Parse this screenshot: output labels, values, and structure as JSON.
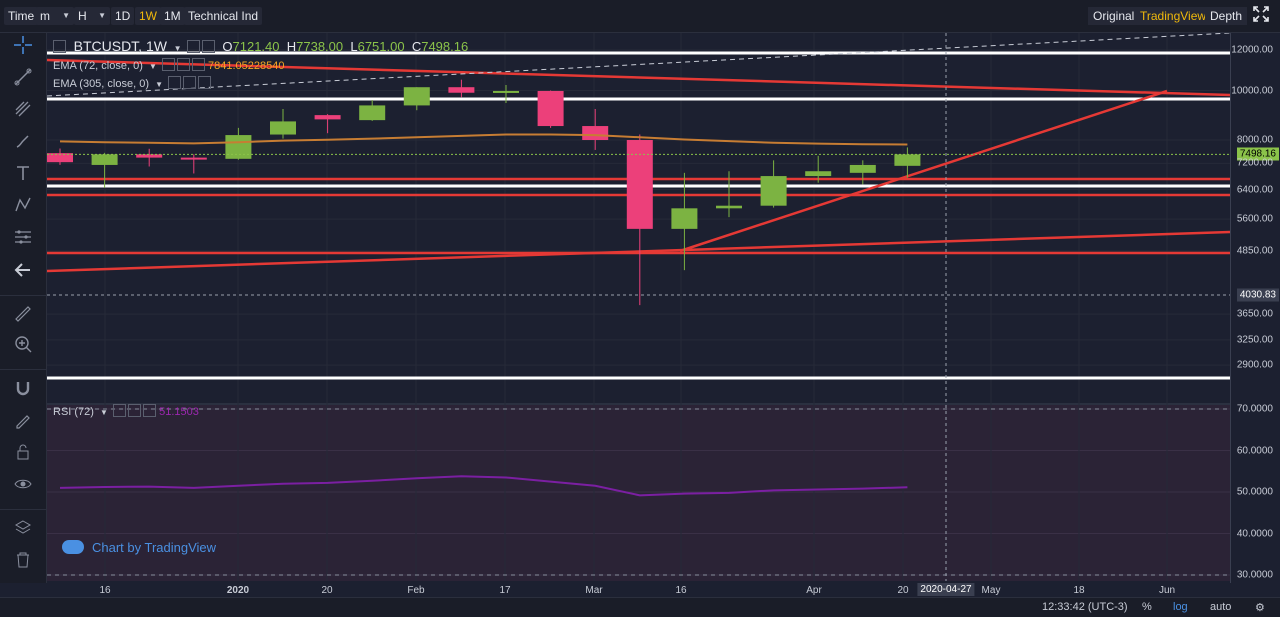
{
  "toolbar": {
    "time": "Time",
    "minute_menu": "m",
    "hour_menu": "H",
    "interval_1d": "1D",
    "interval_1w": "1W",
    "interval_1m": "1M",
    "indicators": "Technical Ind",
    "view_original": "Original",
    "view_tradingview": "TradingView",
    "view_depth": "Depth"
  },
  "legend": {
    "symbol": "BTCUSDT, 1W",
    "o_label": "O",
    "o": "7121.40",
    "h_label": "H",
    "h": "7738.00",
    "l_label": "L",
    "l": "6751.00",
    "c_label": "C",
    "c": "7498.16",
    "ema1": "EMA (72, close, 0)",
    "ema1_value": "7841.05228540",
    "ema2": "EMA (305, close, 0)",
    "rsi": "RSI (72)",
    "rsi_value": "51.1503"
  },
  "price_axis": {
    "labels": [
      "12000.00",
      "10000.00",
      "8000.00",
      "7200.00",
      "6400.00",
      "5600.00",
      "4850.00",
      "3650.00",
      "3250.00",
      "2900.00"
    ],
    "current_price_tag": "7498.16",
    "crosshair_price_tag": "4030.83",
    "rsi_labels": [
      "70.0000",
      "60.0000",
      "50.0000",
      "40.0000",
      "30.0000"
    ]
  },
  "time_axis": {
    "labels": [
      "16",
      "2020",
      "20",
      "Feb",
      "17",
      "Mar",
      "16",
      "Apr",
      "20",
      "May",
      "18",
      "Jun"
    ],
    "crosshair_date": "2020-04-27"
  },
  "status": {
    "clock": "12:33:42 (UTC-3)",
    "percent": "%",
    "log": "log",
    "auto": "auto"
  },
  "watermark": "Chart by TradingView",
  "colors": {
    "up": "#7cb342",
    "down": "#ec407a",
    "ema72": "#c77d33",
    "rsi": "#7b1fa2",
    "lines_red": "#e53935",
    "lines_white": "#ffffff",
    "accent": "#f0b90b"
  },
  "chart_data": {
    "type": "candlestick",
    "interval": "1W",
    "scale": "log",
    "ylim": [
      2700,
      12500
    ],
    "rsi_ylim": [
      30,
      70
    ],
    "candles": [
      {
        "x": "2019-12-09",
        "o": 7540,
        "h": 7700,
        "l": 7150,
        "c": 7240
      },
      {
        "x": "2019-12-16",
        "o": 7150,
        "h": 7550,
        "l": 6450,
        "c": 7500
      },
      {
        "x": "2019-12-23",
        "o": 7500,
        "h": 7690,
        "l": 7100,
        "c": 7390
      },
      {
        "x": "2019-12-30",
        "o": 7390,
        "h": 7500,
        "l": 6880,
        "c": 7350
      },
      {
        "x": "2020-01-06",
        "o": 7350,
        "h": 8450,
        "l": 7320,
        "c": 8180
      },
      {
        "x": "2020-01-13",
        "o": 8200,
        "h": 9200,
        "l": 8050,
        "c": 8700
      },
      {
        "x": "2020-01-20",
        "o": 8950,
        "h": 8990,
        "l": 8250,
        "c": 8780
      },
      {
        "x": "2020-01-27",
        "o": 8750,
        "h": 9580,
        "l": 8720,
        "c": 9350
      },
      {
        "x": "2020-02-03",
        "o": 9350,
        "h": 10150,
        "l": 9150,
        "c": 10150
      },
      {
        "x": "2020-02-10",
        "o": 10150,
        "h": 10500,
        "l": 9700,
        "c": 9900
      },
      {
        "x": "2020-02-17",
        "o": 9950,
        "h": 10250,
        "l": 9450,
        "c": 9980
      },
      {
        "x": "2020-02-24",
        "o": 9980,
        "h": 10000,
        "l": 8450,
        "c": 8520
      },
      {
        "x": "2020-03-02",
        "o": 8520,
        "h": 9200,
        "l": 7650,
        "c": 8000
      },
      {
        "x": "2020-03-09",
        "o": 8000,
        "h": 8200,
        "l": 3800,
        "c": 5360
      },
      {
        "x": "2020-03-16",
        "o": 5360,
        "h": 6900,
        "l": 4450,
        "c": 5880
      },
      {
        "x": "2020-03-23",
        "o": 5880,
        "h": 6950,
        "l": 5650,
        "c": 5950
      },
      {
        "x": "2020-03-30",
        "o": 5950,
        "h": 7300,
        "l": 5900,
        "c": 6800
      },
      {
        "x": "2020-04-06",
        "o": 6800,
        "h": 7450,
        "l": 6600,
        "c": 6950
      },
      {
        "x": "2020-04-13",
        "o": 6900,
        "h": 7300,
        "l": 6550,
        "c": 7150
      },
      {
        "x": "2020-04-20",
        "o": 7121.4,
        "h": 7738.0,
        "l": 6751.0,
        "c": 7498.16
      }
    ],
    "ema72": [
      7950,
      7920,
      7900,
      7880,
      7920,
      7980,
      8010,
      8050,
      8100,
      8150,
      8200,
      8200,
      8180,
      8100,
      8020,
      7960,
      7900,
      7870,
      7850,
      7841.05
    ],
    "rsi72": [
      51.0,
      51.2,
      51.3,
      51.0,
      51.5,
      52.0,
      52.2,
      52.7,
      53.3,
      53.8,
      53.5,
      52.5,
      51.5,
      49.2,
      49.6,
      49.8,
      50.4,
      50.6,
      50.8,
      51.15
    ]
  }
}
